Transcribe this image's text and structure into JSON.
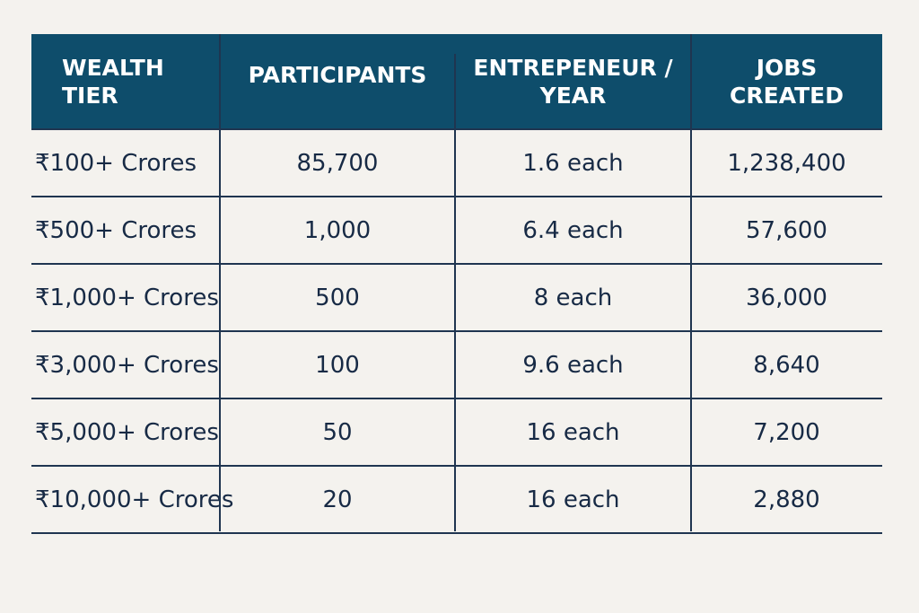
{
  "chart_data": {
    "type": "table",
    "columns": [
      "WEALTH\nTIER",
      "PARTICIPANTS",
      "ENTREPENEUR /\nYEAR",
      "JOBS\nCREATED"
    ],
    "rows": [
      [
        "₹100+ Crores",
        "85,700",
        "1.6 each",
        "1,238,400"
      ],
      [
        "₹500+ Crores",
        "1,000",
        "6.4 each",
        "57,600"
      ],
      [
        "₹1,000+ Crores",
        "500",
        "8 each",
        "36,000"
      ],
      [
        "₹3,000+ Crores",
        "100",
        "9.6 each",
        "8,640"
      ],
      [
        "₹5,000+ Crores",
        "50",
        "16 each",
        "7,200"
      ],
      [
        "₹10,000+ Crores",
        "20",
        "16 each",
        "2,880"
      ]
    ]
  },
  "colors": {
    "header_bg": "#0e4d6b",
    "header_text": "#ffffff",
    "body_text": "#172a45",
    "grid": "#1f3550",
    "page_bg": "#f4f2ee"
  }
}
